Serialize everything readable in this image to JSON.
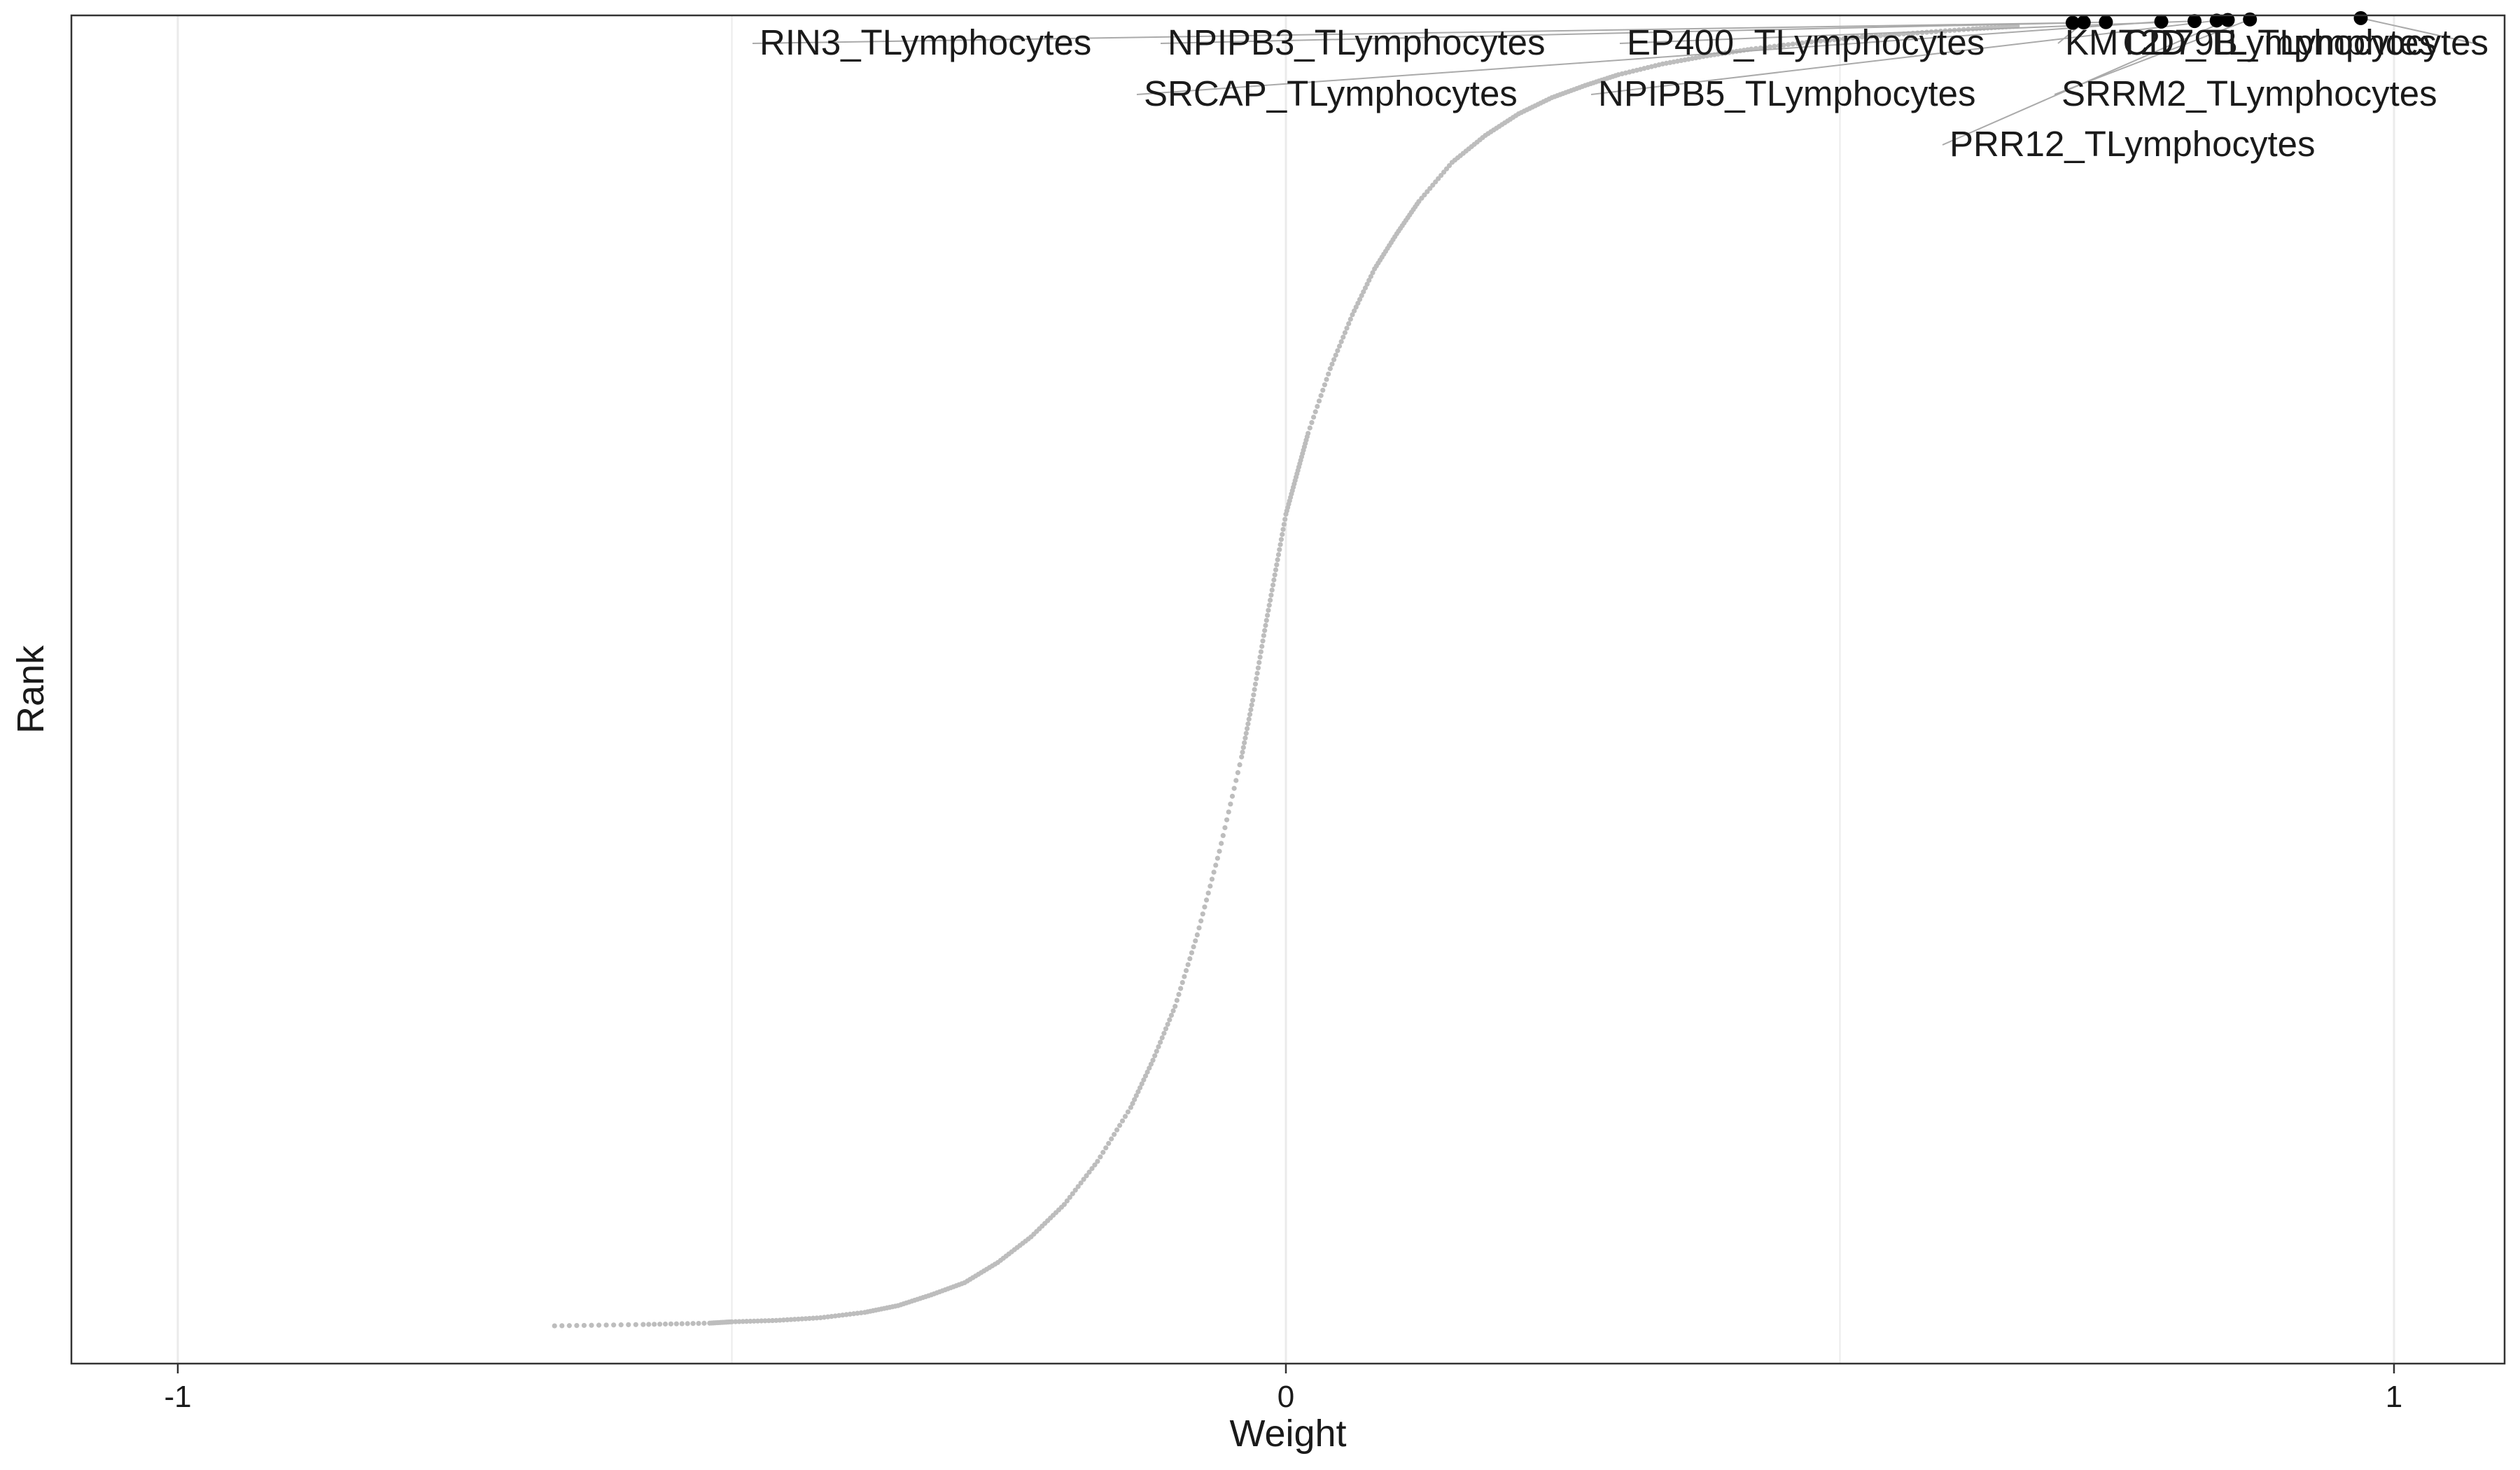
{
  "chart_data": {
    "type": "scatter",
    "xlabel": "Weight",
    "ylabel": "Rank",
    "xlim": [
      -1.1,
      1.1
    ],
    "ylim": [
      0,
      1
    ],
    "grid": true,
    "x_ticks": [
      -1,
      0,
      1
    ],
    "x_tick_labels": [
      "-1",
      "0",
      "1"
    ],
    "colors": {
      "curve": "#bdbdbd",
      "highlight": "#000000",
      "gridline": "#ebebeb",
      "panel_border": "#333333",
      "label_segment": "#aaaaaa"
    },
    "curve_points": [
      {
        "x": -0.66,
        "y": 0.028
      },
      {
        "x": -0.58,
        "y": 0.029
      },
      {
        "x": -0.52,
        "y": 0.03
      },
      {
        "x": -0.5,
        "y": 0.031
      },
      {
        "x": -0.46,
        "y": 0.032
      },
      {
        "x": -0.42,
        "y": 0.034
      },
      {
        "x": -0.38,
        "y": 0.038
      },
      {
        "x": -0.35,
        "y": 0.043
      },
      {
        "x": -0.32,
        "y": 0.051
      },
      {
        "x": -0.29,
        "y": 0.06
      },
      {
        "x": -0.26,
        "y": 0.075
      },
      {
        "x": -0.23,
        "y": 0.094
      },
      {
        "x": -0.2,
        "y": 0.118
      },
      {
        "x": -0.17,
        "y": 0.15
      },
      {
        "x": -0.14,
        "y": 0.19
      },
      {
        "x": -0.12,
        "y": 0.225
      },
      {
        "x": -0.1,
        "y": 0.265
      },
      {
        "x": -0.08,
        "y": 0.318
      },
      {
        "x": -0.06,
        "y": 0.38
      },
      {
        "x": -0.04,
        "y": 0.45
      },
      {
        "x": -0.03,
        "y": 0.492
      },
      {
        "x": -0.02,
        "y": 0.54
      },
      {
        "x": -0.01,
        "y": 0.585
      },
      {
        "x": 0.0,
        "y": 0.63
      },
      {
        "x": 0.01,
        "y": 0.66
      },
      {
        "x": 0.02,
        "y": 0.69
      },
      {
        "x": 0.04,
        "y": 0.738
      },
      {
        "x": 0.06,
        "y": 0.778
      },
      {
        "x": 0.08,
        "y": 0.812
      },
      {
        "x": 0.1,
        "y": 0.838
      },
      {
        "x": 0.12,
        "y": 0.862
      },
      {
        "x": 0.15,
        "y": 0.891
      },
      {
        "x": 0.18,
        "y": 0.911
      },
      {
        "x": 0.21,
        "y": 0.927
      },
      {
        "x": 0.24,
        "y": 0.939
      },
      {
        "x": 0.27,
        "y": 0.948
      },
      {
        "x": 0.3,
        "y": 0.956
      },
      {
        "x": 0.34,
        "y": 0.964
      },
      {
        "x": 0.38,
        "y": 0.97
      },
      {
        "x": 0.42,
        "y": 0.975
      },
      {
        "x": 0.47,
        "y": 0.98
      },
      {
        "x": 0.52,
        "y": 0.984
      },
      {
        "x": 0.57,
        "y": 0.987
      },
      {
        "x": 0.62,
        "y": 0.99
      },
      {
        "x": 0.66,
        "y": 0.992
      }
    ],
    "labeled_points": [
      {
        "label": "RIN3_TLymphocytes",
        "x": 0.71,
        "y": 0.9945
      },
      {
        "label": "NPIPB3_TLymphocytes",
        "x": 0.74,
        "y": 0.995
      },
      {
        "label": "SRCAP_TLymphocytes",
        "x": 0.79,
        "y": 0.9954
      },
      {
        "label": "EP400_TLymphocytes",
        "x": 0.82,
        "y": 0.9958
      },
      {
        "label": "NPIPB5_TLymphocytes",
        "x": 0.84,
        "y": 0.9962
      },
      {
        "label": "PRR12_TLymphocytes",
        "x": 0.85,
        "y": 0.9966
      },
      {
        "label": "SRRM2_TLymphocytes",
        "x": 0.87,
        "y": 0.997
      },
      {
        "label": "KMT2D_TLymphocytes",
        "x": 0.72,
        "y": 0.9948
      },
      {
        "label": "CD79B_TLymphocytes",
        "x": 0.97,
        "y": 0.998
      }
    ]
  }
}
